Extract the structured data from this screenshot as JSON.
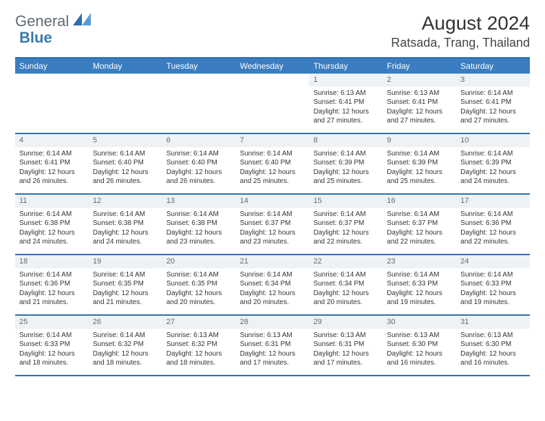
{
  "colors": {
    "header_bg": "#3a7dc0",
    "header_text": "#ffffff",
    "rule": "#2b6fae",
    "daynum_bg": "#eef2f5",
    "daynum_text": "#606a72",
    "body_text": "#333333",
    "logo_gray": "#5d6a73",
    "logo_blue": "#3a7aaa"
  },
  "typography": {
    "month_fontsize": 28,
    "location_fontsize": 18,
    "header_fontsize": 12,
    "daynum_fontsize": 11,
    "cell_fontsize": 10
  },
  "logo": {
    "general": "General",
    "blue": "Blue"
  },
  "month": "August 2024",
  "location": "Ratsada, Trang, Thailand",
  "weekdays": [
    "Sunday",
    "Monday",
    "Tuesday",
    "Wednesday",
    "Thursday",
    "Friday",
    "Saturday"
  ],
  "weeks": [
    [
      {
        "day": "",
        "sunrise": "",
        "sunset": "",
        "daylight": ""
      },
      {
        "day": "",
        "sunrise": "",
        "sunset": "",
        "daylight": ""
      },
      {
        "day": "",
        "sunrise": "",
        "sunset": "",
        "daylight": ""
      },
      {
        "day": "",
        "sunrise": "",
        "sunset": "",
        "daylight": ""
      },
      {
        "day": "1",
        "sunrise": "Sunrise: 6:13 AM",
        "sunset": "Sunset: 6:41 PM",
        "daylight": "Daylight: 12 hours and 27 minutes."
      },
      {
        "day": "2",
        "sunrise": "Sunrise: 6:13 AM",
        "sunset": "Sunset: 6:41 PM",
        "daylight": "Daylight: 12 hours and 27 minutes."
      },
      {
        "day": "3",
        "sunrise": "Sunrise: 6:14 AM",
        "sunset": "Sunset: 6:41 PM",
        "daylight": "Daylight: 12 hours and 27 minutes."
      }
    ],
    [
      {
        "day": "4",
        "sunrise": "Sunrise: 6:14 AM",
        "sunset": "Sunset: 6:41 PM",
        "daylight": "Daylight: 12 hours and 26 minutes."
      },
      {
        "day": "5",
        "sunrise": "Sunrise: 6:14 AM",
        "sunset": "Sunset: 6:40 PM",
        "daylight": "Daylight: 12 hours and 26 minutes."
      },
      {
        "day": "6",
        "sunrise": "Sunrise: 6:14 AM",
        "sunset": "Sunset: 6:40 PM",
        "daylight": "Daylight: 12 hours and 26 minutes."
      },
      {
        "day": "7",
        "sunrise": "Sunrise: 6:14 AM",
        "sunset": "Sunset: 6:40 PM",
        "daylight": "Daylight: 12 hours and 25 minutes."
      },
      {
        "day": "8",
        "sunrise": "Sunrise: 6:14 AM",
        "sunset": "Sunset: 6:39 PM",
        "daylight": "Daylight: 12 hours and 25 minutes."
      },
      {
        "day": "9",
        "sunrise": "Sunrise: 6:14 AM",
        "sunset": "Sunset: 6:39 PM",
        "daylight": "Daylight: 12 hours and 25 minutes."
      },
      {
        "day": "10",
        "sunrise": "Sunrise: 6:14 AM",
        "sunset": "Sunset: 6:39 PM",
        "daylight": "Daylight: 12 hours and 24 minutes."
      }
    ],
    [
      {
        "day": "11",
        "sunrise": "Sunrise: 6:14 AM",
        "sunset": "Sunset: 6:38 PM",
        "daylight": "Daylight: 12 hours and 24 minutes."
      },
      {
        "day": "12",
        "sunrise": "Sunrise: 6:14 AM",
        "sunset": "Sunset: 6:38 PM",
        "daylight": "Daylight: 12 hours and 24 minutes."
      },
      {
        "day": "13",
        "sunrise": "Sunrise: 6:14 AM",
        "sunset": "Sunset: 6:38 PM",
        "daylight": "Daylight: 12 hours and 23 minutes."
      },
      {
        "day": "14",
        "sunrise": "Sunrise: 6:14 AM",
        "sunset": "Sunset: 6:37 PM",
        "daylight": "Daylight: 12 hours and 23 minutes."
      },
      {
        "day": "15",
        "sunrise": "Sunrise: 6:14 AM",
        "sunset": "Sunset: 6:37 PM",
        "daylight": "Daylight: 12 hours and 22 minutes."
      },
      {
        "day": "16",
        "sunrise": "Sunrise: 6:14 AM",
        "sunset": "Sunset: 6:37 PM",
        "daylight": "Daylight: 12 hours and 22 minutes."
      },
      {
        "day": "17",
        "sunrise": "Sunrise: 6:14 AM",
        "sunset": "Sunset: 6:36 PM",
        "daylight": "Daylight: 12 hours and 22 minutes."
      }
    ],
    [
      {
        "day": "18",
        "sunrise": "Sunrise: 6:14 AM",
        "sunset": "Sunset: 6:36 PM",
        "daylight": "Daylight: 12 hours and 21 minutes."
      },
      {
        "day": "19",
        "sunrise": "Sunrise: 6:14 AM",
        "sunset": "Sunset: 6:35 PM",
        "daylight": "Daylight: 12 hours and 21 minutes."
      },
      {
        "day": "20",
        "sunrise": "Sunrise: 6:14 AM",
        "sunset": "Sunset: 6:35 PM",
        "daylight": "Daylight: 12 hours and 20 minutes."
      },
      {
        "day": "21",
        "sunrise": "Sunrise: 6:14 AM",
        "sunset": "Sunset: 6:34 PM",
        "daylight": "Daylight: 12 hours and 20 minutes."
      },
      {
        "day": "22",
        "sunrise": "Sunrise: 6:14 AM",
        "sunset": "Sunset: 6:34 PM",
        "daylight": "Daylight: 12 hours and 20 minutes."
      },
      {
        "day": "23",
        "sunrise": "Sunrise: 6:14 AM",
        "sunset": "Sunset: 6:33 PM",
        "daylight": "Daylight: 12 hours and 19 minutes."
      },
      {
        "day": "24",
        "sunrise": "Sunrise: 6:14 AM",
        "sunset": "Sunset: 6:33 PM",
        "daylight": "Daylight: 12 hours and 19 minutes."
      }
    ],
    [
      {
        "day": "25",
        "sunrise": "Sunrise: 6:14 AM",
        "sunset": "Sunset: 6:33 PM",
        "daylight": "Daylight: 12 hours and 18 minutes."
      },
      {
        "day": "26",
        "sunrise": "Sunrise: 6:14 AM",
        "sunset": "Sunset: 6:32 PM",
        "daylight": "Daylight: 12 hours and 18 minutes."
      },
      {
        "day": "27",
        "sunrise": "Sunrise: 6:13 AM",
        "sunset": "Sunset: 6:32 PM",
        "daylight": "Daylight: 12 hours and 18 minutes."
      },
      {
        "day": "28",
        "sunrise": "Sunrise: 6:13 AM",
        "sunset": "Sunset: 6:31 PM",
        "daylight": "Daylight: 12 hours and 17 minutes."
      },
      {
        "day": "29",
        "sunrise": "Sunrise: 6:13 AM",
        "sunset": "Sunset: 6:31 PM",
        "daylight": "Daylight: 12 hours and 17 minutes."
      },
      {
        "day": "30",
        "sunrise": "Sunrise: 6:13 AM",
        "sunset": "Sunset: 6:30 PM",
        "daylight": "Daylight: 12 hours and 16 minutes."
      },
      {
        "day": "31",
        "sunrise": "Sunrise: 6:13 AM",
        "sunset": "Sunset: 6:30 PM",
        "daylight": "Daylight: 12 hours and 16 minutes."
      }
    ]
  ]
}
